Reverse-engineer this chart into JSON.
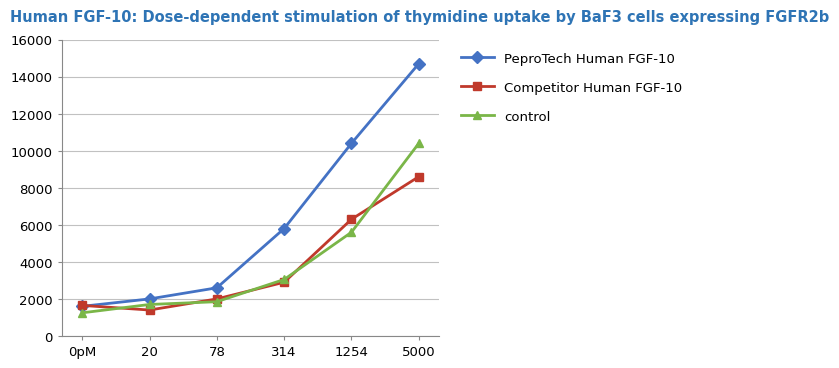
{
  "title": "Human FGF-10: Dose-dependent stimulation of thymidine uptake by BaF3 cells expressing FGFR2b",
  "x_labels": [
    "0pM",
    "20",
    "78",
    "314",
    "1254",
    "5000"
  ],
  "x_positions": [
    0,
    1,
    2,
    3,
    4,
    5
  ],
  "series": [
    {
      "label": "PeproTech Human FGF-10",
      "values": [
        1600,
        2000,
        2600,
        5800,
        10400,
        14700
      ],
      "color": "#4472C4",
      "marker": "D",
      "linewidth": 2.0
    },
    {
      "label": "Competitor Human FGF-10",
      "values": [
        1650,
        1400,
        2000,
        2900,
        6300,
        8600
      ],
      "color": "#C0392B",
      "marker": "s",
      "linewidth": 2.0
    },
    {
      "label": "control",
      "values": [
        1250,
        1700,
        1850,
        3050,
        5600,
        10400
      ],
      "color": "#7AB648",
      "marker": "^",
      "linewidth": 2.0
    }
  ],
  "ylim": [
    0,
    16000
  ],
  "yticks": [
    0,
    2000,
    4000,
    6000,
    8000,
    10000,
    12000,
    14000,
    16000
  ],
  "title_color": "#2E74B5",
  "title_fontsize": 10.5,
  "bg_color": "#FFFFFF",
  "grid_color": "#BBBBBB",
  "legend_fontsize": 9.5
}
